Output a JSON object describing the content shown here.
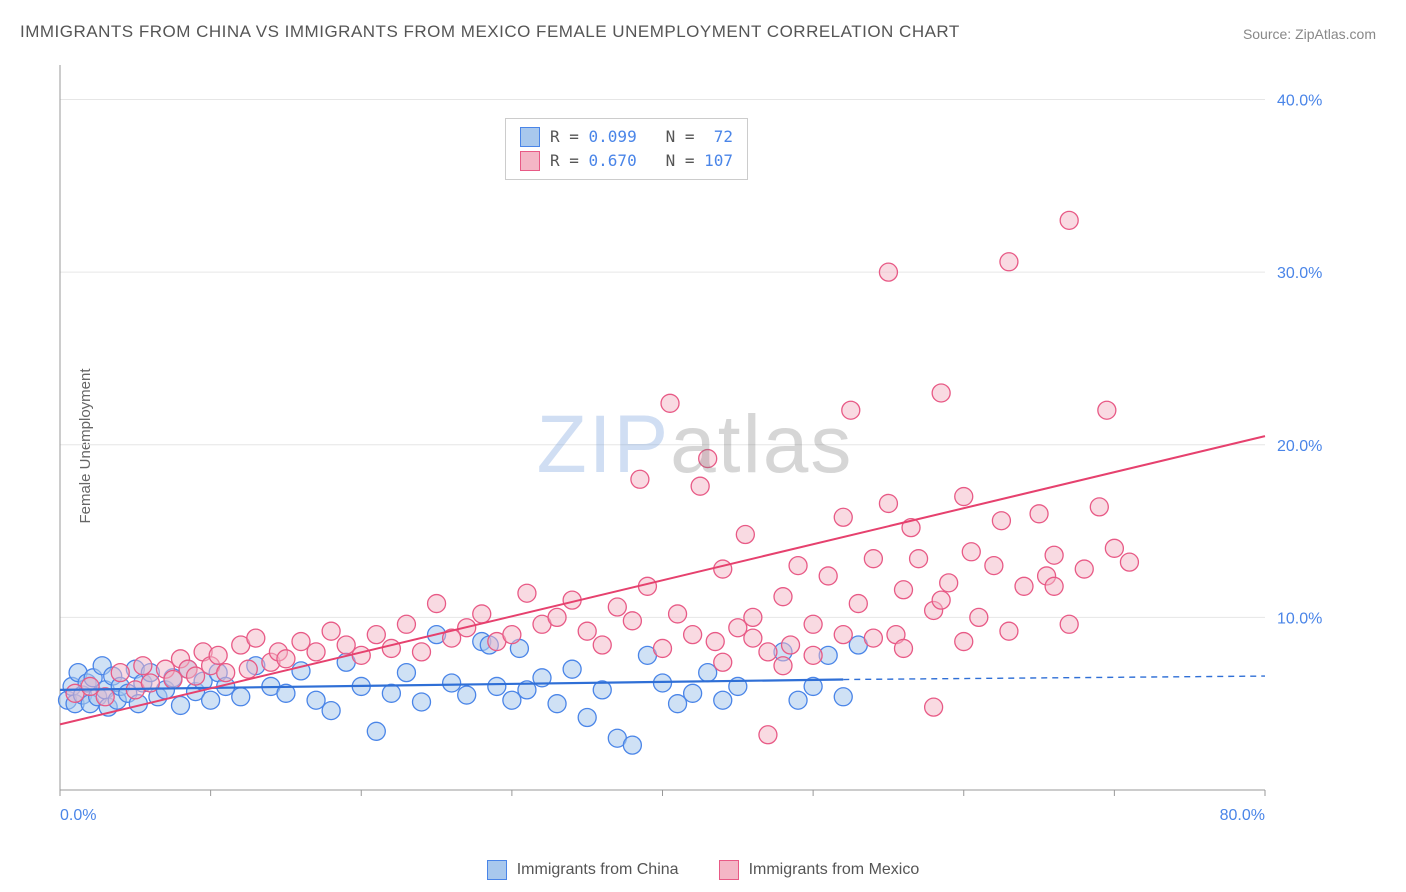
{
  "title": "IMMIGRANTS FROM CHINA VS IMMIGRANTS FROM MEXICO FEMALE UNEMPLOYMENT CORRELATION CHART",
  "source": "Source: ZipAtlas.com",
  "ylabel": "Female Unemployment",
  "watermark": {
    "zip": "ZIP",
    "atlas": "atlas"
  },
  "chart": {
    "type": "scatter-correlation",
    "background_color": "#ffffff",
    "grid_color": "#e6e6e6",
    "xlim": [
      0,
      80
    ],
    "ylim": [
      0,
      42
    ],
    "xticks": [
      0,
      80
    ],
    "xtick_labels": [
      "0.0%",
      "80.0%"
    ],
    "yticks": [
      10,
      20,
      30,
      40
    ],
    "ytick_labels": [
      "10.0%",
      "20.0%",
      "30.0%",
      "40.0%"
    ],
    "tick_color": "#4a85e8",
    "tick_fontsize": 16,
    "marker_radius": 9,
    "marker_stroke_width": 1.3,
    "series": [
      {
        "name": "Immigrants from China",
        "fill": "#a8c8ed",
        "fill_opacity": 0.55,
        "stroke": "#4a85e8",
        "line_color": "#2f6fd6",
        "line_width": 2.2,
        "R": "0.099",
        "N": "72",
        "trend": {
          "x1": 0,
          "y1": 5.8,
          "x2": 52,
          "y2": 6.4,
          "extrap_x2": 80,
          "extrap_y2": 6.6
        },
        "points": [
          [
            0.5,
            5.2
          ],
          [
            0.8,
            6.0
          ],
          [
            1.0,
            5.0
          ],
          [
            1.2,
            6.8
          ],
          [
            1.5,
            5.5
          ],
          [
            1.8,
            6.2
          ],
          [
            2.0,
            5.0
          ],
          [
            2.2,
            6.5
          ],
          [
            2.5,
            5.4
          ],
          [
            2.8,
            7.2
          ],
          [
            3.0,
            5.8
          ],
          [
            3.2,
            4.8
          ],
          [
            3.5,
            6.6
          ],
          [
            3.8,
            5.2
          ],
          [
            4.0,
            6.0
          ],
          [
            4.5,
            5.6
          ],
          [
            5.0,
            7.0
          ],
          [
            5.2,
            5.0
          ],
          [
            5.5,
            6.2
          ],
          [
            6.0,
            6.8
          ],
          [
            6.5,
            5.4
          ],
          [
            7.0,
            5.8
          ],
          [
            7.5,
            6.5
          ],
          [
            8.0,
            4.9
          ],
          [
            8.5,
            7.0
          ],
          [
            9.0,
            5.7
          ],
          [
            9.5,
            6.3
          ],
          [
            10,
            5.2
          ],
          [
            10.5,
            6.8
          ],
          [
            11,
            6.0
          ],
          [
            12,
            5.4
          ],
          [
            13,
            7.2
          ],
          [
            14,
            6.0
          ],
          [
            15,
            5.6
          ],
          [
            16,
            6.9
          ],
          [
            17,
            5.2
          ],
          [
            18,
            4.6
          ],
          [
            19,
            7.4
          ],
          [
            20,
            6.0
          ],
          [
            21,
            3.4
          ],
          [
            22,
            5.6
          ],
          [
            23,
            6.8
          ],
          [
            24,
            5.1
          ],
          [
            25,
            9.0
          ],
          [
            26,
            6.2
          ],
          [
            27,
            5.5
          ],
          [
            28,
            8.6
          ],
          [
            28.5,
            8.4
          ],
          [
            29,
            6.0
          ],
          [
            30,
            5.2
          ],
          [
            30.5,
            8.2
          ],
          [
            31,
            5.8
          ],
          [
            32,
            6.5
          ],
          [
            33,
            5.0
          ],
          [
            34,
            7.0
          ],
          [
            35,
            4.2
          ],
          [
            36,
            5.8
          ],
          [
            37,
            3.0
          ],
          [
            38,
            2.6
          ],
          [
            39,
            7.8
          ],
          [
            40,
            6.2
          ],
          [
            41,
            5.0
          ],
          [
            42,
            5.6
          ],
          [
            43,
            6.8
          ],
          [
            44,
            5.2
          ],
          [
            45,
            6.0
          ],
          [
            48,
            8.0
          ],
          [
            49,
            5.2
          ],
          [
            50,
            6.0
          ],
          [
            51,
            7.8
          ],
          [
            52,
            5.4
          ],
          [
            53,
            8.4
          ]
        ]
      },
      {
        "name": "Immigrants from Mexico",
        "fill": "#f4b6c6",
        "fill_opacity": 0.5,
        "stroke": "#e85a86",
        "line_color": "#e6416e",
        "line_width": 2.0,
        "R": "0.670",
        "N": "107",
        "trend": {
          "x1": 0,
          "y1": 3.8,
          "x2": 80,
          "y2": 20.5
        },
        "points": [
          [
            1,
            5.6
          ],
          [
            2,
            6.0
          ],
          [
            3,
            5.4
          ],
          [
            4,
            6.8
          ],
          [
            5,
            5.8
          ],
          [
            5.5,
            7.2
          ],
          [
            6,
            6.2
          ],
          [
            7,
            7.0
          ],
          [
            7.5,
            6.4
          ],
          [
            8,
            7.6
          ],
          [
            8.5,
            7.0
          ],
          [
            9,
            6.6
          ],
          [
            9.5,
            8.0
          ],
          [
            10,
            7.2
          ],
          [
            10.5,
            7.8
          ],
          [
            11,
            6.8
          ],
          [
            12,
            8.4
          ],
          [
            12.5,
            7.0
          ],
          [
            13,
            8.8
          ],
          [
            14,
            7.4
          ],
          [
            14.5,
            8.0
          ],
          [
            15,
            7.6
          ],
          [
            16,
            8.6
          ],
          [
            17,
            8.0
          ],
          [
            18,
            9.2
          ],
          [
            19,
            8.4
          ],
          [
            20,
            7.8
          ],
          [
            21,
            9.0
          ],
          [
            22,
            8.2
          ],
          [
            23,
            9.6
          ],
          [
            24,
            8.0
          ],
          [
            25,
            10.8
          ],
          [
            26,
            8.8
          ],
          [
            27,
            9.4
          ],
          [
            28,
            10.2
          ],
          [
            29,
            8.6
          ],
          [
            30,
            9.0
          ],
          [
            31,
            11.4
          ],
          [
            32,
            9.6
          ],
          [
            33,
            10.0
          ],
          [
            34,
            11.0
          ],
          [
            35,
            9.2
          ],
          [
            36,
            8.4
          ],
          [
            37,
            10.6
          ],
          [
            38,
            9.8
          ],
          [
            38.5,
            18.0
          ],
          [
            39,
            11.8
          ],
          [
            40,
            8.2
          ],
          [
            40.5,
            22.4
          ],
          [
            41,
            10.2
          ],
          [
            42,
            9.0
          ],
          [
            42.5,
            17.6
          ],
          [
            43,
            19.2
          ],
          [
            43.5,
            8.6
          ],
          [
            44,
            12.8
          ],
          [
            45,
            9.4
          ],
          [
            45.5,
            14.8
          ],
          [
            46,
            10.0
          ],
          [
            47,
            8.0
          ],
          [
            47,
            3.2
          ],
          [
            48,
            11.2
          ],
          [
            48.5,
            8.4
          ],
          [
            49,
            13.0
          ],
          [
            50,
            9.6
          ],
          [
            51,
            12.4
          ],
          [
            52,
            15.8
          ],
          [
            52.5,
            22.0
          ],
          [
            53,
            10.8
          ],
          [
            54,
            8.8
          ],
          [
            55,
            16.6
          ],
          [
            55.5,
            9.0
          ],
          [
            56,
            11.6
          ],
          [
            56.5,
            15.2
          ],
          [
            57,
            13.4
          ],
          [
            58,
            10.4
          ],
          [
            58.5,
            23.0
          ],
          [
            59,
            12.0
          ],
          [
            60,
            17.0
          ],
          [
            60.5,
            13.8
          ],
          [
            61,
            10.0
          ],
          [
            62,
            13.0
          ],
          [
            62.5,
            15.6
          ],
          [
            63,
            9.2
          ],
          [
            64,
            11.8
          ],
          [
            65,
            16.0
          ],
          [
            65.5,
            12.4
          ],
          [
            66,
            13.6
          ],
          [
            67,
            33.0
          ],
          [
            63,
            30.6
          ],
          [
            55,
            30.0
          ],
          [
            58,
            4.8
          ],
          [
            66,
            11.8
          ],
          [
            67,
            9.6
          ],
          [
            68,
            12.8
          ],
          [
            69,
            16.4
          ],
          [
            69.5,
            22.0
          ],
          [
            70,
            14.0
          ],
          [
            71,
            13.2
          ],
          [
            58.5,
            11.0
          ],
          [
            60,
            8.6
          ],
          [
            48,
            7.2
          ],
          [
            50,
            7.8
          ],
          [
            52,
            9.0
          ],
          [
            54,
            13.4
          ],
          [
            56,
            8.2
          ],
          [
            44,
            7.4
          ],
          [
            46,
            8.8
          ]
        ]
      }
    ],
    "bottom_legend": [
      {
        "swatch_fill": "#a8c8ed",
        "swatch_stroke": "#4a85e8",
        "label": "Immigrants from China"
      },
      {
        "swatch_fill": "#f4b6c6",
        "swatch_stroke": "#e85a86",
        "label": "Immigrants from Mexico"
      }
    ]
  }
}
